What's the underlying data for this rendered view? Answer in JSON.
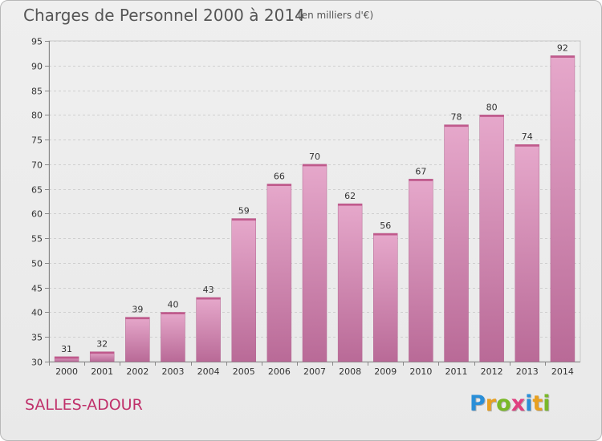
{
  "header": {
    "title": "Charges de Personnel 2000 à 2014",
    "subtitle": "(en milliers d'€)"
  },
  "footer": {
    "commune": "SALLES-ADOUR",
    "logo_letters": [
      "P",
      "r",
      "o",
      "x",
      "i",
      "t",
      "i"
    ],
    "logo_colors": [
      "#2a8fd8",
      "#e8a020",
      "#7ab828",
      "#e04080",
      "#2a8fd8",
      "#e8a020",
      "#7ab828"
    ]
  },
  "chart_data": {
    "type": "bar",
    "categories": [
      "2000",
      "2001",
      "2002",
      "2003",
      "2004",
      "2005",
      "2006",
      "2007",
      "2008",
      "2009",
      "2010",
      "2011",
      "2012",
      "2013",
      "2014"
    ],
    "values": [
      31,
      32,
      39,
      40,
      43,
      59,
      66,
      70,
      62,
      56,
      67,
      78,
      80,
      74,
      92
    ],
    "ylim": [
      30,
      95
    ],
    "yticks": [
      30,
      35,
      40,
      45,
      50,
      55,
      60,
      65,
      70,
      75,
      80,
      85,
      90,
      95
    ],
    "grid": true,
    "bar_color": "#d98bb5"
  }
}
